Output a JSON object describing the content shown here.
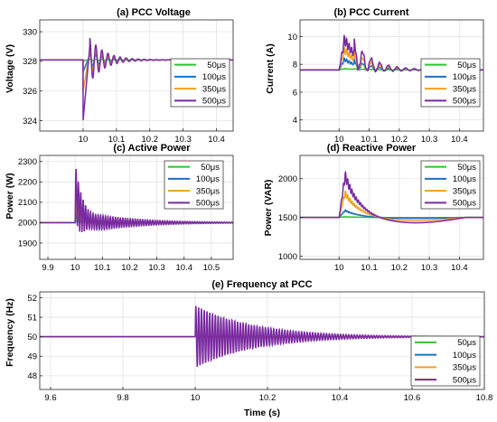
{
  "colors": {
    "50": "#2ec52e",
    "100": "#1f6fc0",
    "350": "#f0a020",
    "500": "#7a2aa0"
  },
  "chart_data": [
    {
      "type": "line",
      "title": "(a) PCC Voltage",
      "xlabel": "",
      "ylabel": "Voltage (V)",
      "xlim": [
        9.87,
        10.45
      ],
      "ylim": [
        323.3,
        330.8
      ],
      "xticks": [
        10,
        10.1,
        10.2,
        10.3,
        10.4
      ],
      "xtick_labels": [
        "10",
        "10.1",
        "10.2",
        "10.3",
        "10.4"
      ],
      "yticks": [
        324,
        326,
        328,
        330
      ],
      "ytick_labels": [
        "324",
        "326",
        "328",
        "330"
      ],
      "grid": true,
      "legend_position": "right",
      "event_time": 10.0,
      "baseline": 328.1,
      "series": [
        {
          "name": "50μs",
          "color_key": "50",
          "dip_min": 328.05,
          "overshoot_peak": 328.15
        },
        {
          "name": "100μs",
          "color_key": "100",
          "dip_min": 327.3,
          "overshoot_peak": 328.6
        },
        {
          "name": "350μs",
          "color_key": "350",
          "dip_min": 326.0,
          "overshoot_peak": 329.0
        },
        {
          "name": "500μs",
          "color_key": "500",
          "dip_min": 324.0,
          "overshoot_peak": 329.6
        }
      ]
    },
    {
      "type": "line",
      "title": "(b) PCC Current",
      "xlabel": "",
      "ylabel": "Current (A)",
      "xlim": [
        9.87,
        10.48
      ],
      "ylim": [
        3.2,
        11.2
      ],
      "xticks": [
        10,
        10.1,
        10.2,
        10.3,
        10.4
      ],
      "xtick_labels": [
        "10",
        "10.1",
        "10.2",
        "10.3",
        "10.4"
      ],
      "yticks": [
        4,
        6,
        8,
        10
      ],
      "ytick_labels": [
        "4",
        "6",
        "8",
        "10"
      ],
      "grid": true,
      "legend_position": "right",
      "event_time": 10.0,
      "baseline": 7.6,
      "series": [
        {
          "name": "50μs",
          "color_key": "50",
          "peak": 7.7
        },
        {
          "name": "100μs",
          "color_key": "100",
          "peak": 8.5
        },
        {
          "name": "350μs",
          "color_key": "350",
          "peak": 9.3
        },
        {
          "name": "500μs",
          "color_key": "500",
          "peak": 10.2
        }
      ]
    },
    {
      "type": "line",
      "title": "(c) Active Power",
      "xlabel": "",
      "ylabel": "Power (W)",
      "xlim": [
        9.87,
        10.58
      ],
      "ylim": [
        1820,
        2330
      ],
      "xticks": [
        9.9,
        10,
        10.1,
        10.2,
        10.3,
        10.4,
        10.5
      ],
      "xtick_labels": [
        "9.9",
        "10",
        "10.1",
        "10.2",
        "10.3",
        "10.4",
        "10.5"
      ],
      "yticks": [
        1900,
        2000,
        2100,
        2200,
        2300
      ],
      "ytick_labels": [
        "1900",
        "2000",
        "2100",
        "2200",
        "2300"
      ],
      "grid": true,
      "legend_position": "right",
      "event_time": 10.0,
      "baseline": 2000,
      "series": [
        {
          "name": "50μs",
          "color_key": "50",
          "peak": 2010
        },
        {
          "name": "100μs",
          "color_key": "100",
          "peak": 2050
        },
        {
          "name": "350μs",
          "color_key": "350",
          "peak": 2130
        },
        {
          "name": "500μs",
          "color_key": "500",
          "peak": 2270,
          "oscillation_amplitude": 60
        }
      ]
    },
    {
      "type": "line",
      "title": "(d) Reactive Power",
      "xlabel": "",
      "ylabel": "Power (VAR)",
      "xlim": [
        9.87,
        10.48
      ],
      "ylim": [
        960,
        2300
      ],
      "xticks": [
        10,
        10.1,
        10.2,
        10.3,
        10.4
      ],
      "xtick_labels": [
        "10",
        "10.1",
        "10.2",
        "10.3",
        "10.4"
      ],
      "yticks": [
        1000,
        1500,
        2000
      ],
      "ytick_labels": [
        "1000",
        "1500",
        "2000"
      ],
      "grid": true,
      "legend_position": "right",
      "event_time": 10.0,
      "baseline": 1500,
      "series": [
        {
          "name": "50μs",
          "color_key": "50",
          "peak": 1510
        },
        {
          "name": "100μs",
          "color_key": "100",
          "peak": 1600
        },
        {
          "name": "350μs",
          "color_key": "350",
          "peak": 1850
        },
        {
          "name": "500μs",
          "color_key": "500",
          "peak": 2100
        }
      ]
    },
    {
      "type": "line",
      "title": "(e) Frequency at PCC",
      "xlabel": "Time (s)",
      "ylabel": "Frequency (Hz)",
      "xlim": [
        9.57,
        10.8
      ],
      "ylim": [
        47.3,
        52.3
      ],
      "xticks": [
        9.6,
        9.8,
        10,
        10.2,
        10.4,
        10.6,
        10.8
      ],
      "xtick_labels": [
        "9.6",
        "9.8",
        "10",
        "10.2",
        "10.4",
        "10.6",
        "10.8"
      ],
      "yticks": [
        48,
        49,
        50,
        51,
        52
      ],
      "ytick_labels": [
        "48",
        "49",
        "50",
        "51",
        "52"
      ],
      "grid": true,
      "legend_position": "bottom-right",
      "event_time": 10.0,
      "baseline": 50,
      "series": [
        {
          "name": "50μs",
          "color_key": "50"
        },
        {
          "name": "100μs",
          "color_key": "100"
        },
        {
          "name": "350μs",
          "color_key": "350"
        },
        {
          "name": "500μs",
          "color_key": "500",
          "oscillation_amplitude": 1.6
        }
      ]
    }
  ]
}
